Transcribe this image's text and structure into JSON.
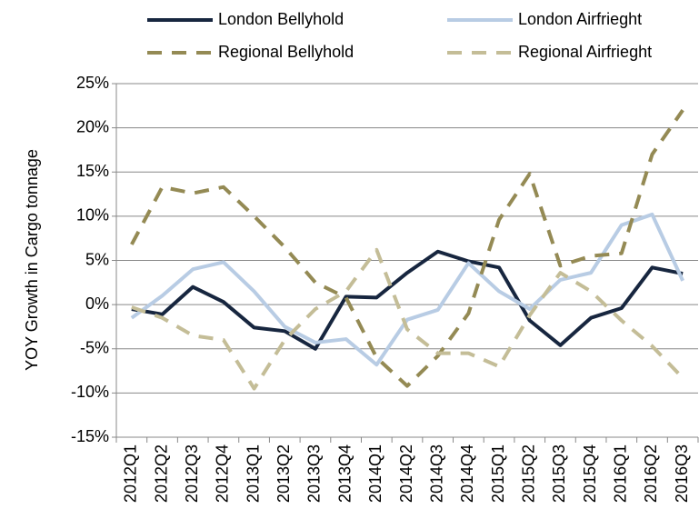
{
  "chart_data": {
    "type": "line",
    "y_label": "YOY Growth in Cargo tonnage",
    "categories": [
      "2012Q1",
      "2012Q2",
      "2012Q3",
      "2012Q4",
      "2013Q1",
      "2013Q2",
      "2013Q3",
      "2013Q4",
      "2014Q1",
      "2014Q2",
      "2014Q3",
      "2014Q4",
      "2015Q1",
      "2015Q2",
      "2015Q3",
      "2015Q4",
      "2016Q1",
      "2016Q2",
      "2016Q3"
    ],
    "series": [
      {
        "name": "London Bellyhold",
        "color": "#17263f",
        "dashed": false,
        "values": [
          -0.5,
          -1.1,
          2.0,
          0.3,
          -2.6,
          -3.0,
          -5.0,
          0.9,
          0.8,
          3.6,
          6.0,
          4.9,
          4.2,
          -1.8,
          -4.6,
          -1.5,
          -0.4,
          4.2,
          3.5
        ]
      },
      {
        "name": "London Airfrieght",
        "color": "#b8cce4",
        "dashed": false,
        "values": [
          -1.5,
          1.0,
          4.0,
          4.8,
          1.5,
          -2.5,
          -4.3,
          -3.9,
          -6.8,
          -1.7,
          -0.6,
          4.7,
          1.5,
          -0.5,
          2.8,
          3.6,
          9.0,
          10.2,
          2.7
        ]
      },
      {
        "name": "Regional Bellyhold",
        "color": "#948a54",
        "dashed": true,
        "values": [
          6.8,
          13.3,
          12.6,
          13.3,
          10.0,
          6.5,
          2.5,
          0.8,
          -6.0,
          -9.2,
          -5.8,
          -1.0,
          9.6,
          14.8,
          4.4,
          5.5,
          5.8,
          17.0,
          22.0
        ]
      },
      {
        "name": "Regional Airfrieght",
        "color": "#c4bd97",
        "dashed": true,
        "values": [
          -0.3,
          -1.5,
          -3.5,
          -4.0,
          -9.5,
          -4.0,
          -0.5,
          1.5,
          6.2,
          -2.8,
          -5.5,
          -5.5,
          -7.0,
          -1.2,
          3.6,
          1.5,
          -1.8,
          -4.7,
          -8.3
        ]
      }
    ],
    "ylim": [
      -15,
      25
    ],
    "yticks": [
      {
        "value": -15,
        "label": "-15%"
      },
      {
        "value": -10,
        "label": "-10%"
      },
      {
        "value": -5,
        "label": "-5%"
      },
      {
        "value": 0,
        "label": "0%"
      },
      {
        "value": 5,
        "label": "5%"
      },
      {
        "value": 10,
        "label": "10%"
      },
      {
        "value": 15,
        "label": "15%"
      },
      {
        "value": 20,
        "label": "20%"
      },
      {
        "value": 25,
        "label": "25%"
      }
    ],
    "grid": true
  }
}
